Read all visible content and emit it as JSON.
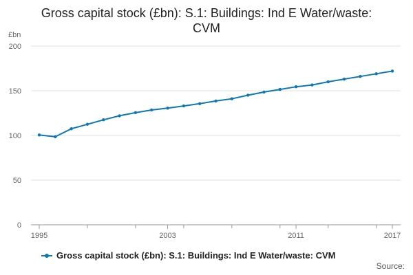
{
  "chart_data": {
    "type": "line",
    "title_line1": "Gross capital stock (£bn): S.1: Buildings: Ind E Water/waste:",
    "title_line2": "CVM",
    "ylabel": "£bn",
    "xlabel": "",
    "ylim": [
      0,
      200
    ],
    "yticks": [
      0,
      50,
      100,
      150,
      200
    ],
    "xlim": [
      1995,
      2017
    ],
    "xticks": [
      1995,
      2003,
      2011,
      2017
    ],
    "grid": true,
    "series": [
      {
        "name": "Gross capital stock (£bn): S.1: Buildings: Ind E Water/waste: CVM",
        "color": "#0c78b5",
        "x": [
          1995,
          1996,
          1997,
          1998,
          1999,
          2000,
          2001,
          2002,
          2003,
          2004,
          2005,
          2006,
          2007,
          2008,
          2009,
          2010,
          2011,
          2012,
          2013,
          2014,
          2015,
          2016,
          2017
        ],
        "values": [
          100.5,
          98.5,
          107.5,
          112.5,
          117.5,
          122,
          125.5,
          128.5,
          130.5,
          133,
          135.5,
          138.5,
          141,
          145,
          148.5,
          151.5,
          154.5,
          156.5,
          160,
          163,
          166,
          169,
          172
        ]
      }
    ],
    "legend_position": "bottom"
  },
  "source_label": "Source:"
}
